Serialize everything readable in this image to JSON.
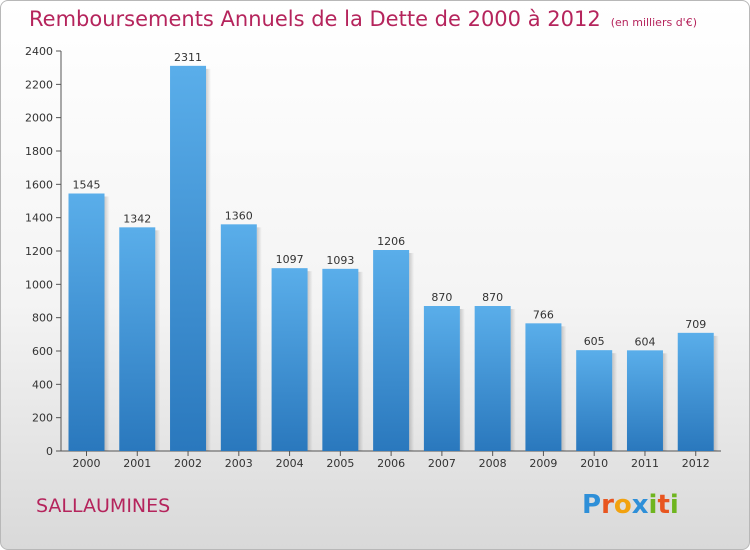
{
  "title": "Remboursements Annuels de la Dette de 2000 à 2012",
  "unit": "(en milliers d'€)",
  "city": "SALLAUMINES",
  "logo": {
    "letters": [
      "P",
      "r",
      "o",
      "x",
      "i",
      "t",
      "i"
    ],
    "colors": [
      "#2e8fd8",
      "#e8551f",
      "#f2a20f",
      "#2e8fd8",
      "#6fb51f",
      "#e8551f",
      "#6fb51f"
    ]
  },
  "colors": {
    "bar_top": "#5aaeea",
    "bar_bottom": "#2a78bd",
    "title": "#b5245c"
  },
  "chart_data": {
    "type": "bar",
    "categories": [
      "2000",
      "2001",
      "2002",
      "2003",
      "2004",
      "2005",
      "2006",
      "2007",
      "2008",
      "2009",
      "2010",
      "2011",
      "2012"
    ],
    "values": [
      1545,
      1342,
      2311,
      1360,
      1097,
      1093,
      1206,
      870,
      870,
      766,
      605,
      604,
      709
    ],
    "ylim": [
      0,
      2400
    ],
    "yticks": [
      0,
      200,
      400,
      600,
      800,
      1000,
      1200,
      1400,
      1600,
      1800,
      2000,
      2200,
      2400
    ],
    "grid": false,
    "data_labels": true
  }
}
